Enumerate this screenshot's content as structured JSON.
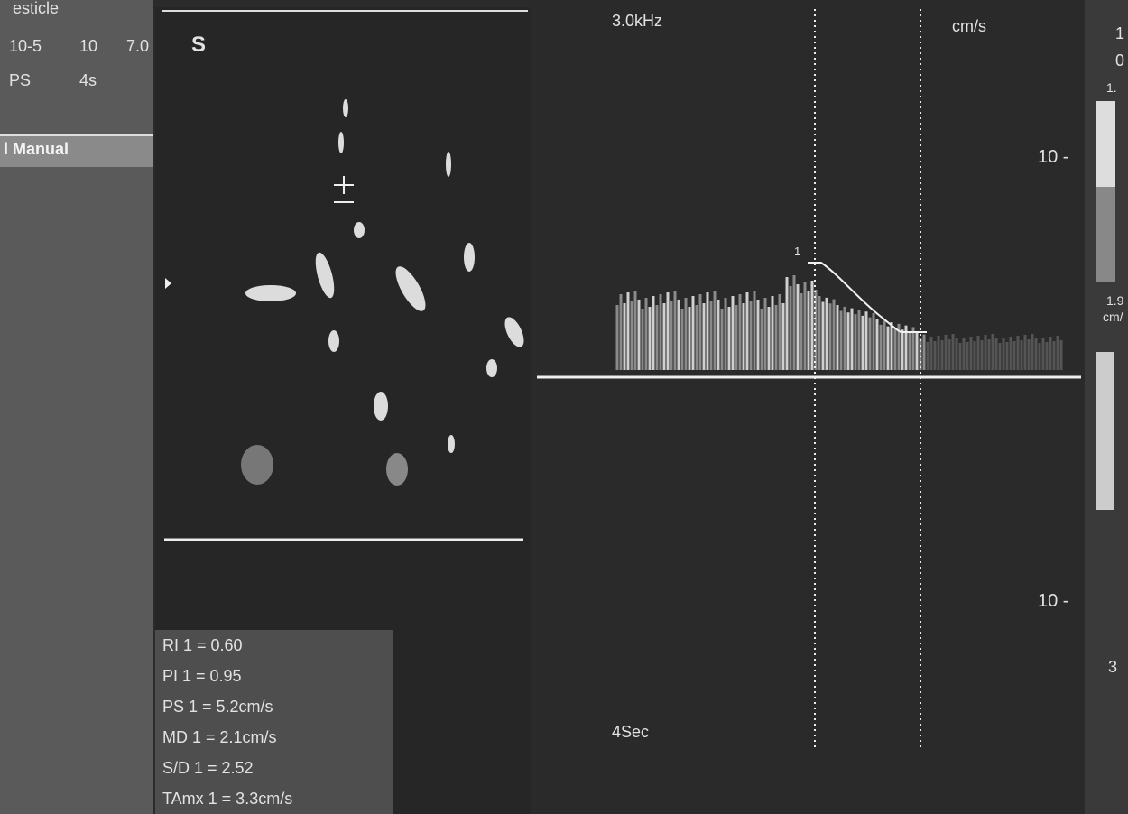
{
  "header": {
    "probe_title": "esticle",
    "probe_freq": "10-5",
    "depth": "10",
    "gain": "7.0",
    "mode": "PS",
    "sweep": "4s",
    "logo": "S"
  },
  "menu": {
    "item": "l Manual"
  },
  "doppler": {
    "frequency": "3.0kHz",
    "unit": "cm/s",
    "upper_scale": "10 -",
    "lower_scale": "10 -",
    "cursor_label": "1",
    "sweep_label": "4Sec"
  },
  "measurements": [
    "RI 1 = 0.60",
    "PI 1 = 0.95",
    "PS 1 = 5.2cm/s",
    "MD 1 = 2.1cm/s",
    "S/D 1 = 2.52",
    "TAmx 1 = 3.3cm/s"
  ],
  "side_scale": {
    "top": "1",
    "top2": "0",
    "mid": "1.",
    "low": "1.9",
    "unit": "cm/",
    "bottom": "3"
  }
}
